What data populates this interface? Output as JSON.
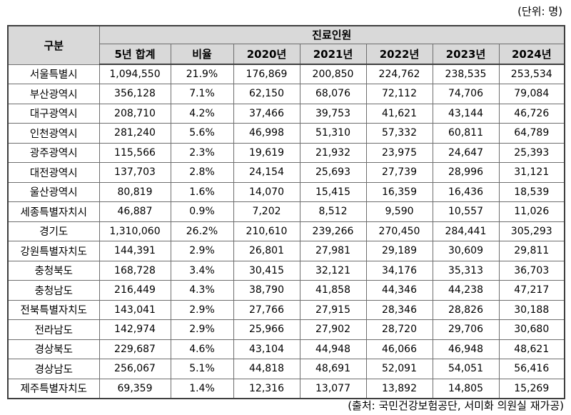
{
  "unit_label": "(단위: 명)",
  "source_label": "(출처: 국민건강보험공단, 서미화 의원실 재가공)",
  "colors": {
    "header_bg": "#d9d9d9",
    "border_dark": "#3f3f3f",
    "border_light": "#6e6e6e",
    "text": "#000000",
    "background": "#ffffff"
  },
  "table": {
    "group_header": "구분",
    "span_header": "진료인원",
    "columns": [
      "5년 합계",
      "비율",
      "2020년",
      "2021년",
      "2022년",
      "2023년",
      "2024년"
    ],
    "rows": [
      {
        "region": "서울특별시",
        "values": [
          "1,094,550",
          "21.9%",
          "176,869",
          "200,850",
          "224,762",
          "238,535",
          "253,534"
        ]
      },
      {
        "region": "부산광역시",
        "values": [
          "356,128",
          "7.1%",
          "62,150",
          "68,076",
          "72,112",
          "74,706",
          "79,084"
        ]
      },
      {
        "region": "대구광역시",
        "values": [
          "208,710",
          "4.2%",
          "37,466",
          "39,753",
          "41,621",
          "43,144",
          "46,726"
        ]
      },
      {
        "region": "인천광역시",
        "values": [
          "281,240",
          "5.6%",
          "46,998",
          "51,310",
          "57,332",
          "60,811",
          "64,789"
        ]
      },
      {
        "region": "광주광역시",
        "values": [
          "115,566",
          "2.3%",
          "19,619",
          "21,932",
          "23,975",
          "24,647",
          "25,393"
        ]
      },
      {
        "region": "대전광역시",
        "values": [
          "137,703",
          "2.8%",
          "24,154",
          "25,693",
          "27,739",
          "28,996",
          "31,121"
        ]
      },
      {
        "region": "울산광역시",
        "values": [
          "80,819",
          "1.6%",
          "14,070",
          "15,415",
          "16,359",
          "16,436",
          "18,539"
        ]
      },
      {
        "region": "세종특별자치시",
        "values": [
          "46,887",
          "0.9%",
          "7,202",
          "8,512",
          "9,590",
          "10,557",
          "11,026"
        ]
      },
      {
        "region": "경기도",
        "values": [
          "1,310,060",
          "26.2%",
          "210,610",
          "239,266",
          "270,450",
          "284,441",
          "305,293"
        ]
      },
      {
        "region": "강원특별자치도",
        "values": [
          "144,391",
          "2.9%",
          "26,801",
          "27,981",
          "29,189",
          "30,609",
          "29,811"
        ]
      },
      {
        "region": "충청북도",
        "values": [
          "168,728",
          "3.4%",
          "30,415",
          "32,121",
          "34,176",
          "35,313",
          "36,703"
        ]
      },
      {
        "region": "충청남도",
        "values": [
          "216,449",
          "4.3%",
          "38,790",
          "41,858",
          "44,346",
          "44,238",
          "47,217"
        ]
      },
      {
        "region": "전북특별자치도",
        "values": [
          "143,041",
          "2.9%",
          "27,766",
          "27,915",
          "28,346",
          "28,826",
          "30,188"
        ]
      },
      {
        "region": "전라남도",
        "values": [
          "142,974",
          "2.9%",
          "25,966",
          "27,902",
          "28,720",
          "29,706",
          "30,680"
        ]
      },
      {
        "region": "경상북도",
        "values": [
          "229,687",
          "4.6%",
          "43,104",
          "44,948",
          "46,066",
          "46,948",
          "48,621"
        ]
      },
      {
        "region": "경상남도",
        "values": [
          "256,067",
          "5.1%",
          "44,818",
          "48,691",
          "52,091",
          "54,051",
          "56,416"
        ]
      },
      {
        "region": "제주특별자치도",
        "values": [
          "69,359",
          "1.4%",
          "12,316",
          "13,077",
          "13,892",
          "14,805",
          "15,269"
        ]
      }
    ]
  }
}
